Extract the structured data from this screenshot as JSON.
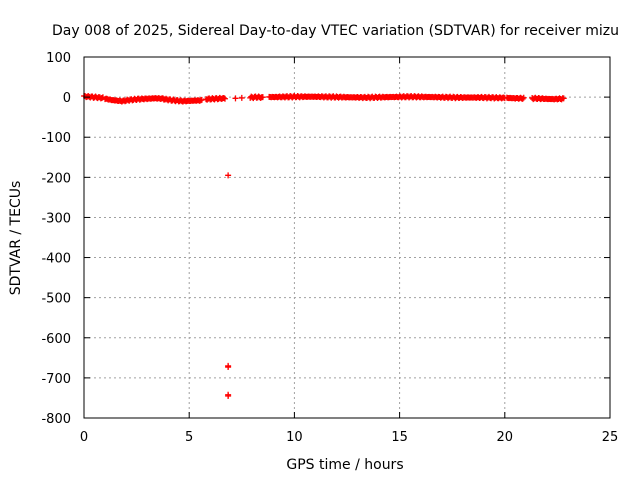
{
  "chart_data": {
    "type": "scatter",
    "title": "Day 008 of 2025, Sidereal Day-to-day VTEC variation (SDTVAR) for receiver mizu",
    "xlabel": "GPS time / hours",
    "ylabel": "SDTVAR / TECUs",
    "xlim": [
      0,
      25
    ],
    "ylim": [
      -800,
      100
    ],
    "xticks": [
      0,
      5,
      10,
      15,
      20,
      25
    ],
    "xtick_labels": [
      "0",
      "5",
      "10",
      "15",
      "20",
      "25"
    ],
    "yticks": [
      100,
      0,
      -100,
      -200,
      -300,
      -400,
      -500,
      -600,
      -700,
      -800
    ],
    "ytick_labels": [
      "100",
      "0",
      "-100",
      "-200",
      "-300",
      "-400",
      "-500",
      "-600",
      "-700",
      "-800"
    ],
    "grid": true,
    "marker": "plus",
    "color": "#ff0000",
    "segments": [
      {
        "x_start": 0.0,
        "x_end": 0.9,
        "y_profile": [
          2,
          1,
          0,
          -1,
          -2
        ]
      },
      {
        "x_start": 1.0,
        "x_end": 3.8,
        "y_profile": [
          -4,
          -8,
          -10,
          -7,
          -5,
          -4,
          -3,
          -4
        ]
      },
      {
        "x_start": 3.8,
        "x_end": 5.6,
        "y_profile": [
          -5,
          -8,
          -10,
          -9,
          -8
        ]
      },
      {
        "x_start": 5.8,
        "x_end": 6.7,
        "y_profile": [
          -5,
          -4,
          -3
        ]
      },
      {
        "x_start": 7.9,
        "x_end": 8.5,
        "y_profile": [
          -1,
          0,
          -1
        ]
      },
      {
        "x_start": 8.8,
        "x_end": 20.0,
        "y_profile": [
          0,
          1,
          1,
          0,
          -1,
          0,
          1,
          0,
          -1,
          -1,
          -2
        ]
      },
      {
        "x_start": 20.1,
        "x_end": 20.9,
        "y_profile": [
          -2,
          -3,
          -3
        ]
      },
      {
        "x_start": 21.3,
        "x_end": 22.8,
        "y_profile": [
          -3,
          -4,
          -5,
          -4
        ]
      }
    ],
    "outliers": [
      {
        "x": 6.85,
        "y": -195
      },
      {
        "x": 6.85,
        "y": -670
      },
      {
        "x": 6.85,
        "y": -673
      },
      {
        "x": 6.85,
        "y": -742
      },
      {
        "x": 6.85,
        "y": -745
      },
      {
        "x": 7.2,
        "y": -3
      },
      {
        "x": 7.5,
        "y": -2
      }
    ]
  }
}
